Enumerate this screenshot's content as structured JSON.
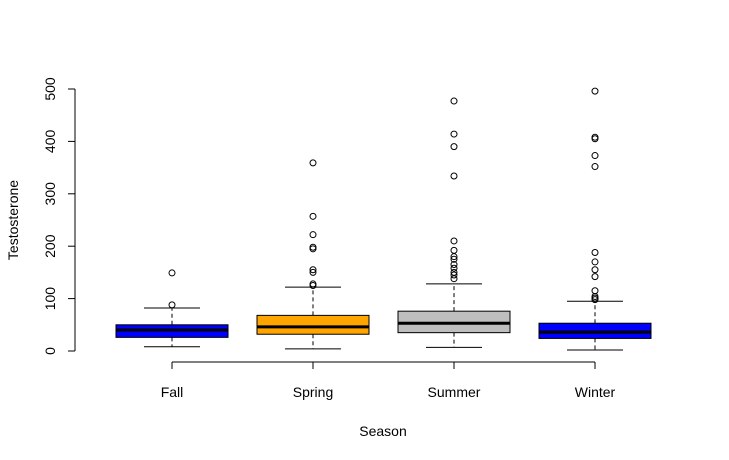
{
  "chart_data": {
    "type": "boxplot",
    "title": "",
    "xlabel": "Season",
    "ylabel": "Testosterone",
    "ylim": [
      -20,
      510
    ],
    "y_ticks": [
      0,
      100,
      200,
      300,
      400,
      500
    ],
    "grid": false,
    "categories": [
      "Fall",
      "Spring",
      "Summer",
      "Winter"
    ],
    "colors": [
      "#0000ff",
      "#ffa500",
      "#bebebe",
      "#0000ff"
    ],
    "boxes": [
      {
        "category": "Fall",
        "whisker_low": 8,
        "q1": 26,
        "median": 40,
        "q3": 50,
        "whisker_high": 82,
        "outliers": [
          88,
          149
        ]
      },
      {
        "category": "Spring",
        "whisker_low": 4,
        "q1": 32,
        "median": 46,
        "q3": 68,
        "whisker_high": 122,
        "outliers": [
          125,
          128,
          150,
          155,
          195,
          198,
          222,
          257,
          359
        ]
      },
      {
        "category": "Summer",
        "whisker_low": 7,
        "q1": 35,
        "median": 53,
        "q3": 76,
        "whisker_high": 128,
        "outliers": [
          138,
          145,
          150,
          158,
          165,
          175,
          180,
          192,
          210,
          334,
          390,
          414,
          477
        ]
      },
      {
        "category": "Winter",
        "whisker_low": 2,
        "q1": 24,
        "median": 36,
        "q3": 53,
        "whisker_high": 95,
        "outliers": [
          98,
          101,
          104,
          115,
          142,
          155,
          170,
          188,
          352,
          373,
          405,
          408,
          496
        ]
      }
    ]
  }
}
